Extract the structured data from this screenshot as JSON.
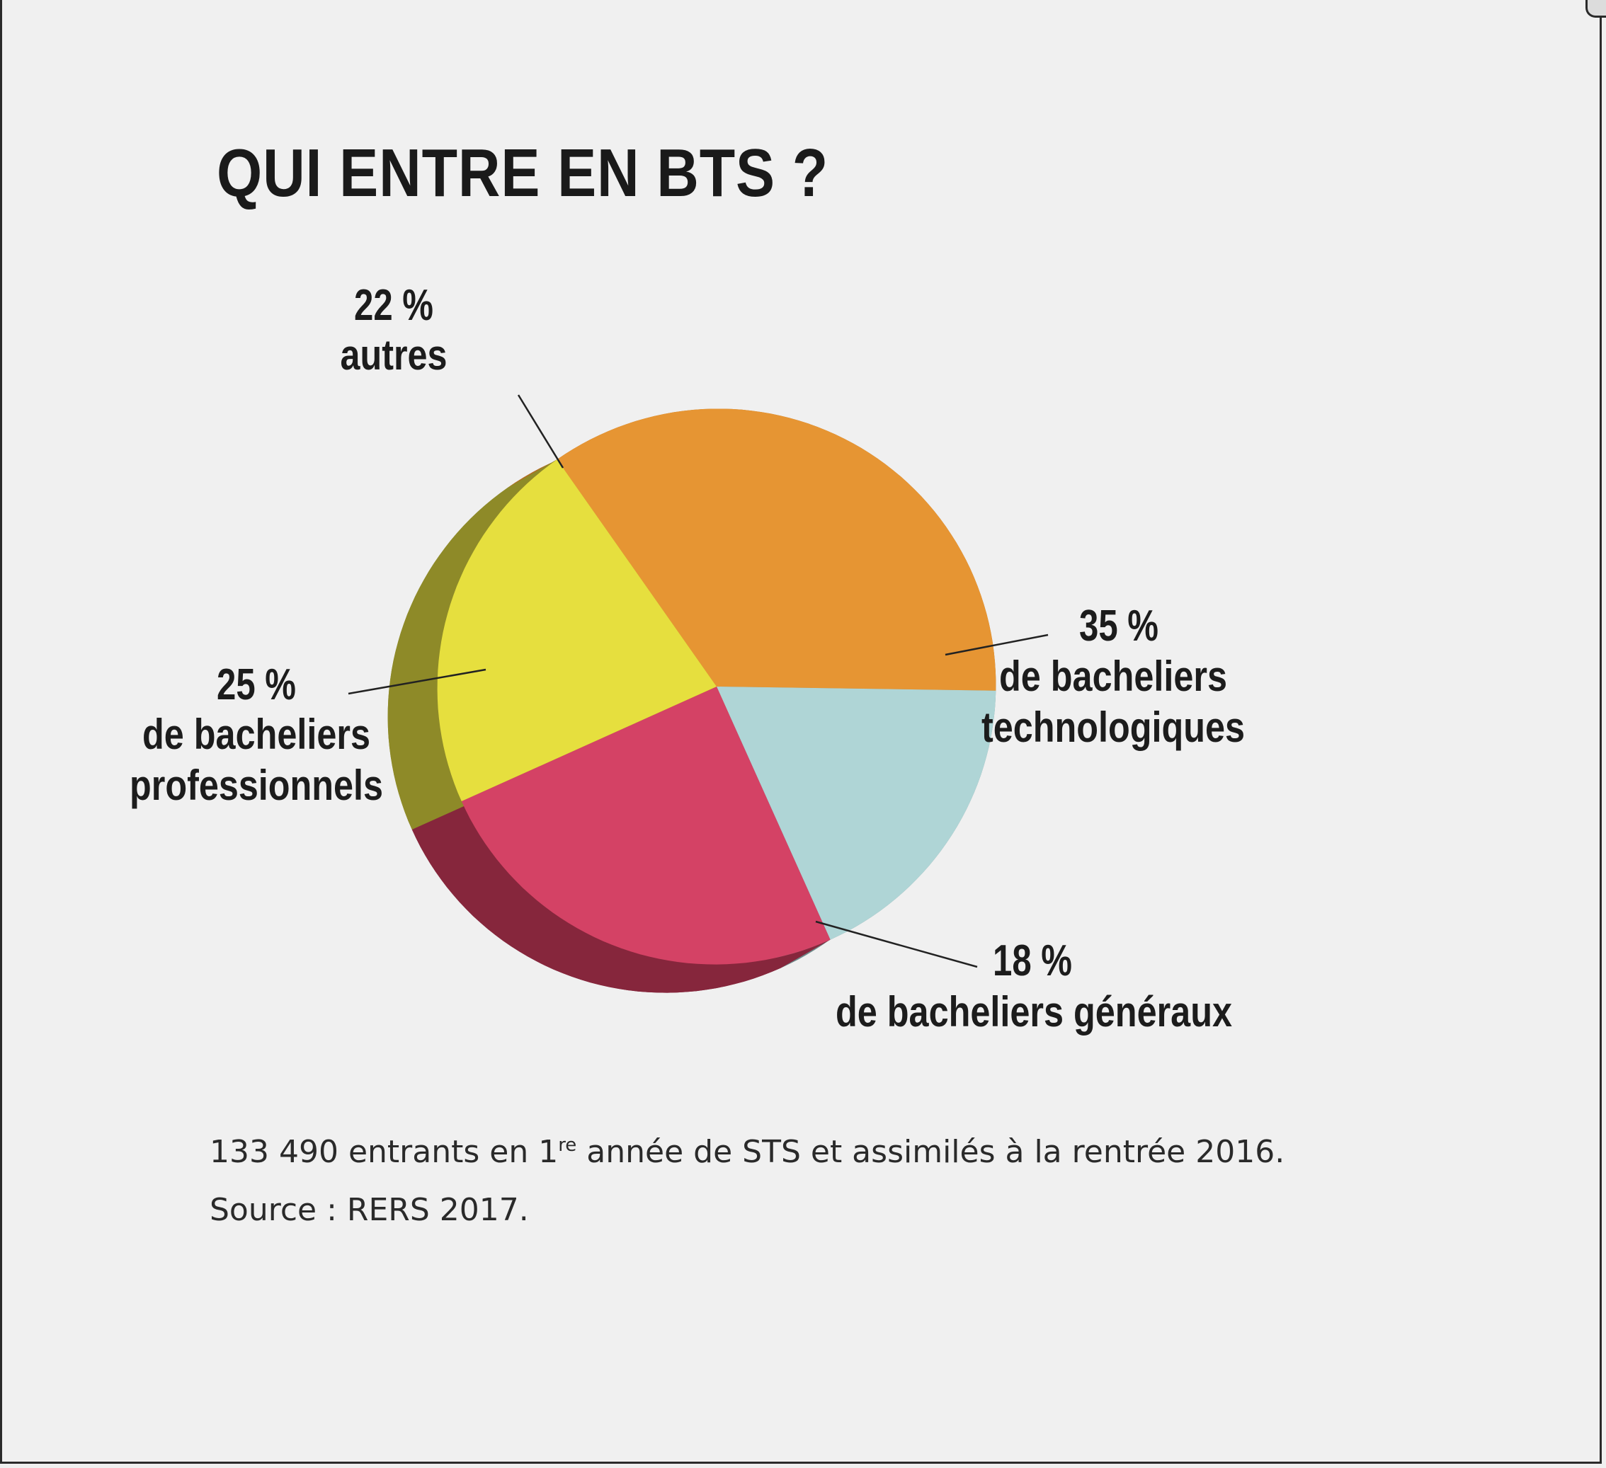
{
  "title": "QUI ENTRE EN BTS ?",
  "chart_data": {
    "type": "pie",
    "title": "QUI ENTRE EN BTS ?",
    "slices": [
      {
        "label_pct": "35 %",
        "label_lines": [
          "de bacheliers",
          "technologiques"
        ],
        "value": 35,
        "color": "#e69533",
        "side_color": "#b06e22"
      },
      {
        "label_pct": "18 %",
        "label_lines": [
          "de bacheliers généraux"
        ],
        "value": 18,
        "color": "#afd5d6",
        "side_color": "#6e8a8b"
      },
      {
        "label_pct": "25 %",
        "label_lines": [
          "de bacheliers",
          "professionnels"
        ],
        "value": 25,
        "color": "#d44265",
        "side_color": "#86263c"
      },
      {
        "label_pct": "22 %",
        "label_lines": [
          "autres"
        ],
        "value": 22,
        "color": "#e6df3e",
        "side_color": "#8e8a28"
      }
    ]
  },
  "footer": {
    "note_prefix": "133 490 entrants en 1",
    "note_sup": "re",
    "note_suffix": " année de STS et assimilés à la rentrée 2016.",
    "source": "Source : RERS 2017."
  }
}
